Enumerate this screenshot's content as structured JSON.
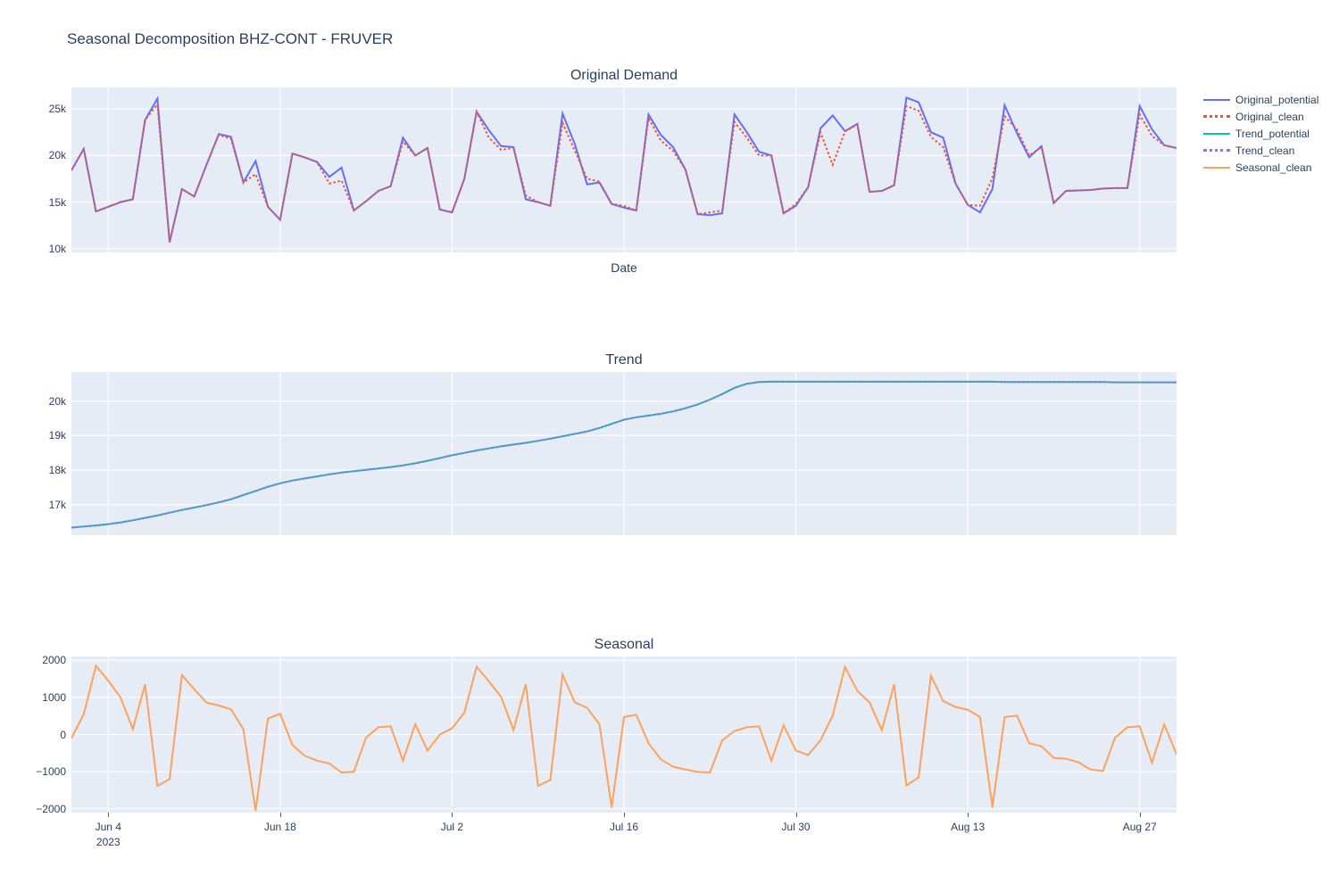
{
  "title": "Seasonal Decomposition BHZ-CONT - FRUVER",
  "axis": {
    "x_title": "Date",
    "x_tick_labels": [
      "Jun 4",
      "Jun 18",
      "Jul 2",
      "Jul 16",
      "Jul 30",
      "Aug 13",
      "Aug 27"
    ],
    "x_tick_days": [
      3,
      17,
      31,
      45,
      59,
      73,
      87
    ],
    "x_year_label": "2023"
  },
  "legend": {
    "items": [
      {
        "label": "Original_potential",
        "color": "#636efa",
        "dash": "solid"
      },
      {
        "label": "Original_clean",
        "color": "#ef553b",
        "dash": "dot"
      },
      {
        "label": "Trend_potential",
        "color": "#00cc96",
        "dash": "solid"
      },
      {
        "label": "Trend_clean",
        "color": "#ab63fa",
        "dash": "dot"
      },
      {
        "label": "Seasonal_clean",
        "color": "#ffa15a",
        "dash": "solid"
      }
    ]
  },
  "colors": {
    "plot_background": "#e5ecf6",
    "grid": "#ffffff",
    "text": "#2a3f5f"
  },
  "chart_data": [
    {
      "type": "line",
      "title": "Original Demand",
      "xlabel": "Date",
      "x_start": "Jun 1 2023",
      "x_end": "Aug 30 2023",
      "y_ticks": [
        10000,
        15000,
        20000,
        25000
      ],
      "y_tick_labels": [
        "10k",
        "15k",
        "20k",
        "25k"
      ],
      "ylim": [
        9600,
        27300
      ],
      "grid": true,
      "series": [
        {
          "name": "Original_potential",
          "color": "#636efa",
          "dash": "solid",
          "values": [
            18400,
            20700,
            14000,
            14500,
            15000,
            15300,
            23800,
            26100,
            10700,
            16400,
            15600,
            19000,
            22300,
            22000,
            17100,
            19400,
            14500,
            13100,
            20200,
            19800,
            19300,
            17700,
            18700,
            14100,
            15100,
            16200,
            16700,
            21900,
            20000,
            20800,
            14200,
            13900,
            17500,
            24700,
            22700,
            21000,
            20900,
            15300,
            15000,
            14600,
            24500,
            21200,
            16900,
            17100,
            14800,
            14400,
            14100,
            24400,
            22200,
            20900,
            18500,
            13700,
            13600,
            13800,
            24400,
            22500,
            20400,
            20000,
            13800,
            14600,
            16600,
            22900,
            24300,
            22600,
            23400,
            16100,
            16200,
            16800,
            26200,
            25700,
            22500,
            21900,
            17000,
            14700,
            13900,
            16400,
            25400,
            22400,
            19800,
            21000,
            14900,
            16200,
            16250,
            16300,
            16450,
            16500,
            16500,
            25300,
            22800,
            21100,
            20800
          ]
        },
        {
          "name": "Original_clean",
          "color": "#ef553b",
          "dash": "dot",
          "values": [
            18400,
            20700,
            14000,
            14500,
            15000,
            15300,
            23800,
            25500,
            10700,
            16400,
            15600,
            19000,
            22200,
            21800,
            17100,
            18000,
            14500,
            13100,
            20200,
            19800,
            19300,
            17000,
            17300,
            14100,
            15100,
            16200,
            16700,
            21500,
            20000,
            20800,
            14200,
            13900,
            17500,
            24700,
            21900,
            20600,
            20800,
            15700,
            15000,
            14600,
            23500,
            20500,
            17500,
            17200,
            14800,
            14600,
            14100,
            24000,
            21600,
            20500,
            18500,
            13700,
            13900,
            14100,
            23600,
            21900,
            20000,
            20000,
            13800,
            14800,
            16600,
            22500,
            19000,
            22600,
            23300,
            16100,
            16200,
            16800,
            25300,
            24800,
            22000,
            20900,
            17000,
            14700,
            14600,
            17600,
            24200,
            22800,
            20000,
            20900,
            14900,
            16200,
            16250,
            16300,
            16450,
            16500,
            16500,
            24400,
            22100,
            21100,
            20800
          ]
        }
      ]
    },
    {
      "type": "line",
      "title": "Trend",
      "y_ticks": [
        17000,
        18000,
        19000,
        20000
      ],
      "y_tick_labels": [
        "17k",
        "18k",
        "19k",
        "20k"
      ],
      "ylim": [
        16120,
        20840
      ],
      "grid": true,
      "series": [
        {
          "name": "Trend_potential",
          "color": "#00cc96",
          "dash": "solid",
          "values": [
            16340,
            16370,
            16400,
            16440,
            16490,
            16550,
            16620,
            16690,
            16770,
            16850,
            16920,
            16990,
            17070,
            17160,
            17280,
            17400,
            17520,
            17620,
            17700,
            17760,
            17820,
            17880,
            17930,
            17970,
            18010,
            18050,
            18090,
            18140,
            18200,
            18270,
            18350,
            18430,
            18500,
            18570,
            18630,
            18690,
            18740,
            18790,
            18850,
            18910,
            18980,
            19050,
            19120,
            19220,
            19340,
            19460,
            19530,
            19580,
            19630,
            19700,
            19790,
            19900,
            20040,
            20200,
            20380,
            20500,
            20550,
            20560,
            20560,
            20560,
            20560,
            20560,
            20560,
            20560,
            20560,
            20560,
            20560,
            20560,
            20560,
            20560,
            20560,
            20560,
            20560,
            20560,
            20560,
            20560,
            20550,
            20550,
            20550,
            20550,
            20550,
            20550,
            20550,
            20550,
            20550,
            20540,
            20540,
            20540,
            20540,
            20540,
            20540
          ]
        },
        {
          "name": "Trend_clean",
          "color": "#ab63fa",
          "dash": "dot",
          "values": [
            16340,
            16370,
            16400,
            16440,
            16490,
            16550,
            16620,
            16690,
            16770,
            16850,
            16920,
            16990,
            17070,
            17160,
            17280,
            17400,
            17520,
            17620,
            17700,
            17760,
            17820,
            17880,
            17930,
            17970,
            18010,
            18050,
            18090,
            18140,
            18200,
            18270,
            18350,
            18430,
            18500,
            18570,
            18630,
            18690,
            18740,
            18790,
            18850,
            18910,
            18980,
            19050,
            19120,
            19220,
            19340,
            19460,
            19530,
            19580,
            19630,
            19700,
            19790,
            19900,
            20040,
            20200,
            20380,
            20500,
            20550,
            20560,
            20560,
            20560,
            20560,
            20560,
            20560,
            20560,
            20560,
            20560,
            20560,
            20560,
            20560,
            20560,
            20560,
            20560,
            20560,
            20560,
            20560,
            20560,
            20550,
            20550,
            20550,
            20550,
            20550,
            20550,
            20550,
            20550,
            20550,
            20540,
            20540,
            20540,
            20540,
            20540,
            20540
          ]
        }
      ]
    },
    {
      "type": "line",
      "title": "Seasonal",
      "y_ticks": [
        -2000,
        -1000,
        0,
        1000,
        2000
      ],
      "y_tick_labels": [
        "−2000",
        "−1000",
        "0",
        "1000",
        "2000"
      ],
      "ylim": [
        -2100,
        2100
      ],
      "grid": true,
      "show_x_ticks": true,
      "series": [
        {
          "name": "Seasonal_clean",
          "color": "#ffa15a",
          "dash": "solid",
          "values": [
            -100,
            550,
            1850,
            1450,
            1000,
            150,
            1350,
            -1380,
            -1200,
            1600,
            1220,
            860,
            780,
            680,
            150,
            -2050,
            430,
            560,
            -280,
            -570,
            -700,
            -780,
            -1020,
            -1000,
            -80,
            200,
            220,
            -700,
            280,
            -430,
            0,
            170,
            590,
            1825,
            1430,
            1010,
            120,
            1355,
            -1380,
            -1220,
            1615,
            865,
            720,
            275,
            -1960,
            470,
            535,
            -235,
            -667,
            -865,
            -940,
            -1005,
            -1020,
            -157,
            95,
            196,
            220,
            -705,
            250,
            -430,
            -550,
            -157,
            510,
            1820,
            1175,
            865,
            120,
            1350,
            -1370,
            -1150,
            1585,
            900,
            745,
            667,
            470,
            -1960,
            470,
            510,
            -235,
            -313,
            -627,
            -651,
            -745,
            -941,
            -980,
            -78,
            196,
            220,
            -750,
            275,
            -530
          ]
        }
      ]
    }
  ]
}
